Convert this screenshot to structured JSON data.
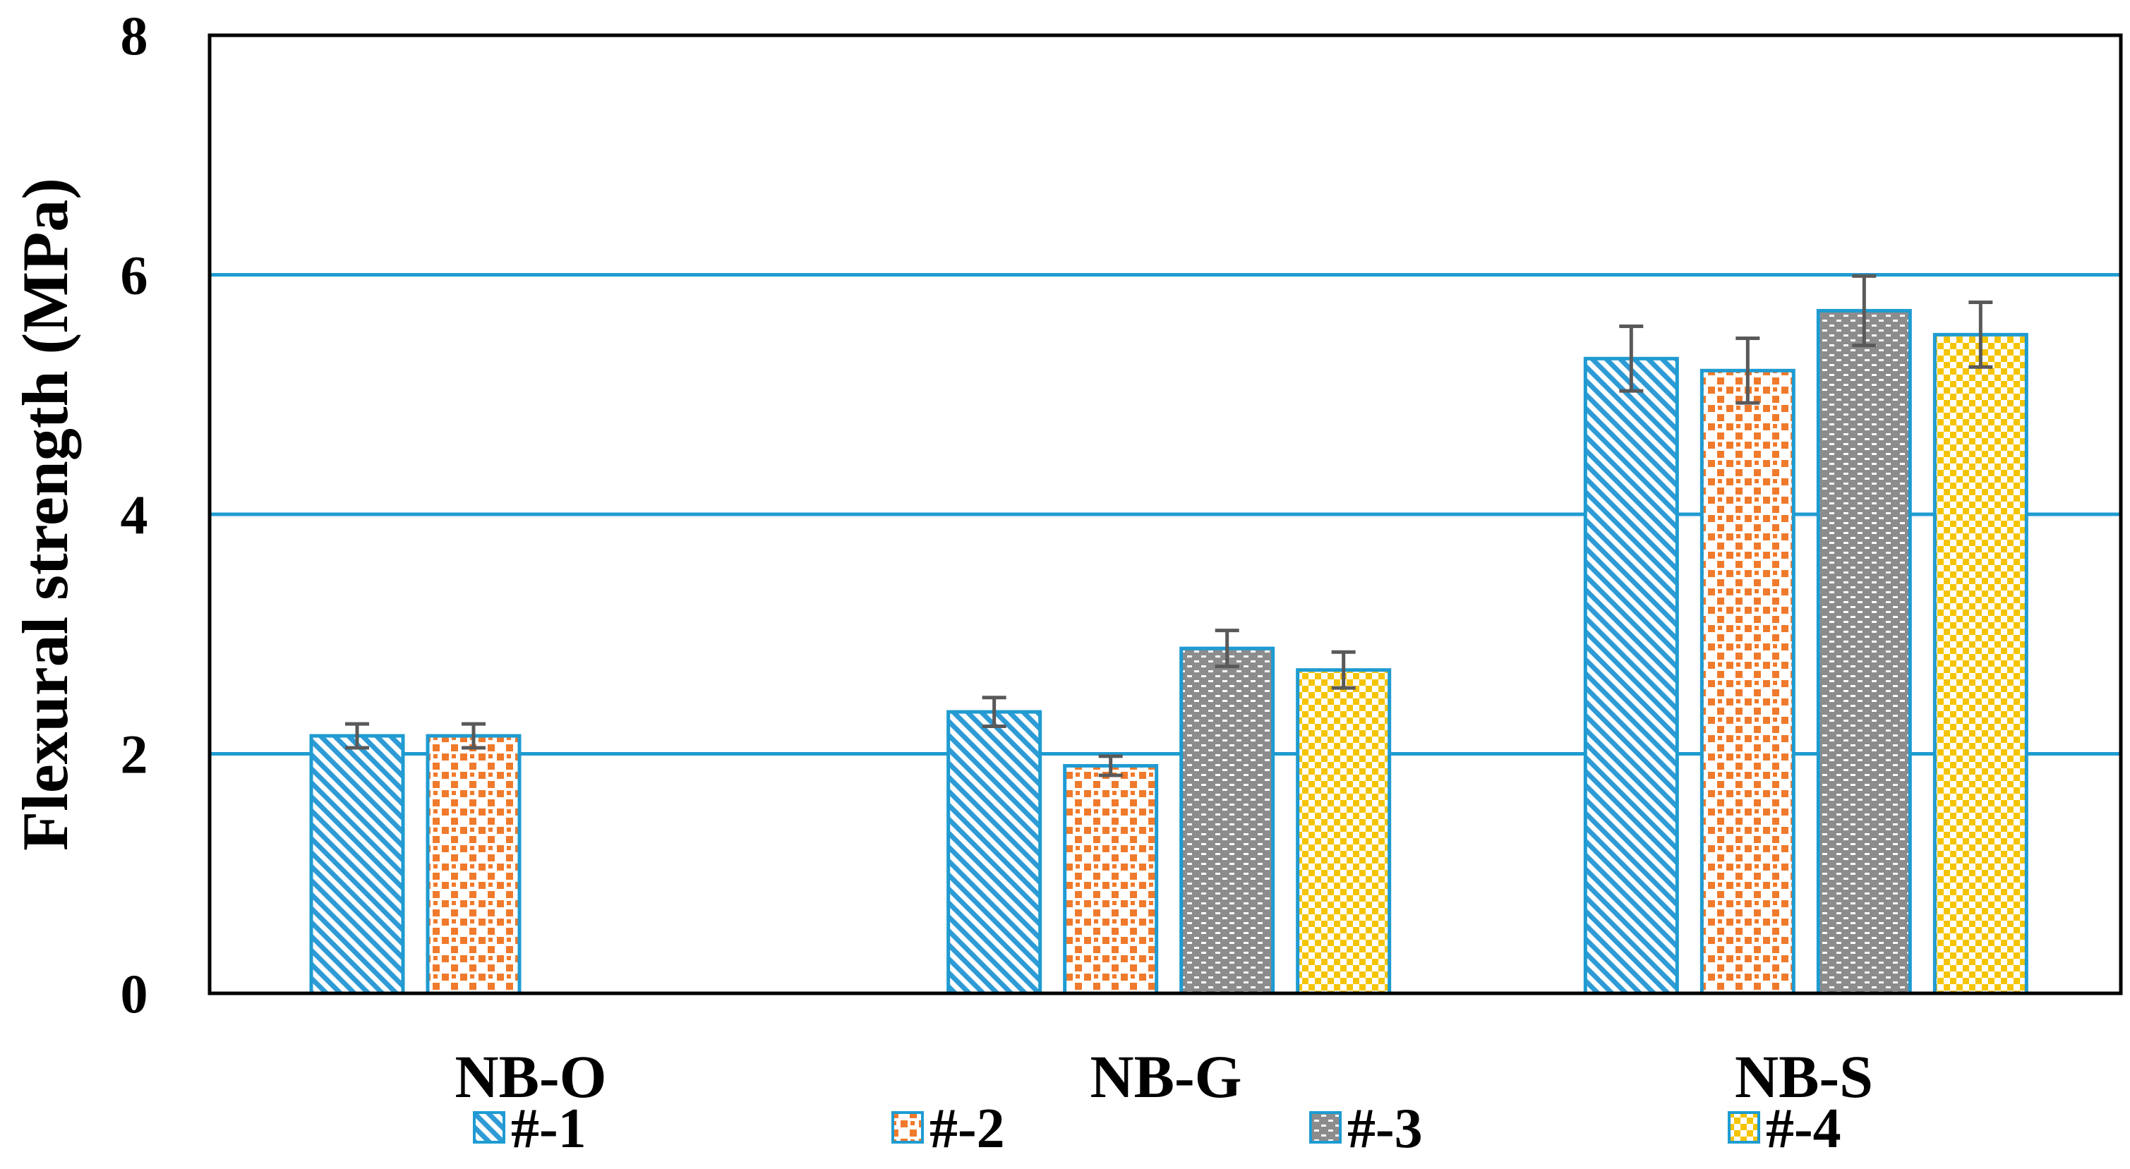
{
  "chart_data": {
    "type": "bar",
    "title": "",
    "xlabel": "",
    "ylabel": "Flexural strength (MPa)",
    "ylim": [
      0,
      8
    ],
    "yticks": [
      "0",
      "2",
      "4",
      "6",
      "8"
    ],
    "grid": true,
    "legend_position": "bottom",
    "categories": [
      "NB-O",
      "NB-G",
      "NB-S"
    ],
    "series": [
      {
        "name": "#-1",
        "pattern": "diagonal-stripes",
        "color": "#2E9BD6",
        "values": [
          2.15,
          2.35,
          5.3
        ],
        "errors": [
          0.1,
          0.12,
          0.27
        ]
      },
      {
        "name": "#-2",
        "pattern": "checker-dots",
        "color": "#F07A2B",
        "values": [
          2.15,
          1.9,
          5.2
        ],
        "errors": [
          0.1,
          0.08,
          0.27
        ]
      },
      {
        "name": "#-3",
        "pattern": "brick",
        "color": "#8C8C8C",
        "values": [
          null,
          2.88,
          5.7
        ],
        "errors": [
          null,
          0.15,
          0.29
        ]
      },
      {
        "name": "#-4",
        "pattern": "checker",
        "color": "#F5C400",
        "values": [
          null,
          2.7,
          5.5
        ],
        "errors": [
          null,
          0.15,
          0.27
        ]
      }
    ],
    "colors": {
      "frame": "#000000",
      "gridline": "#1F9BD1",
      "bar_border": "#1F9BD1",
      "errorbar": "#595959"
    }
  }
}
